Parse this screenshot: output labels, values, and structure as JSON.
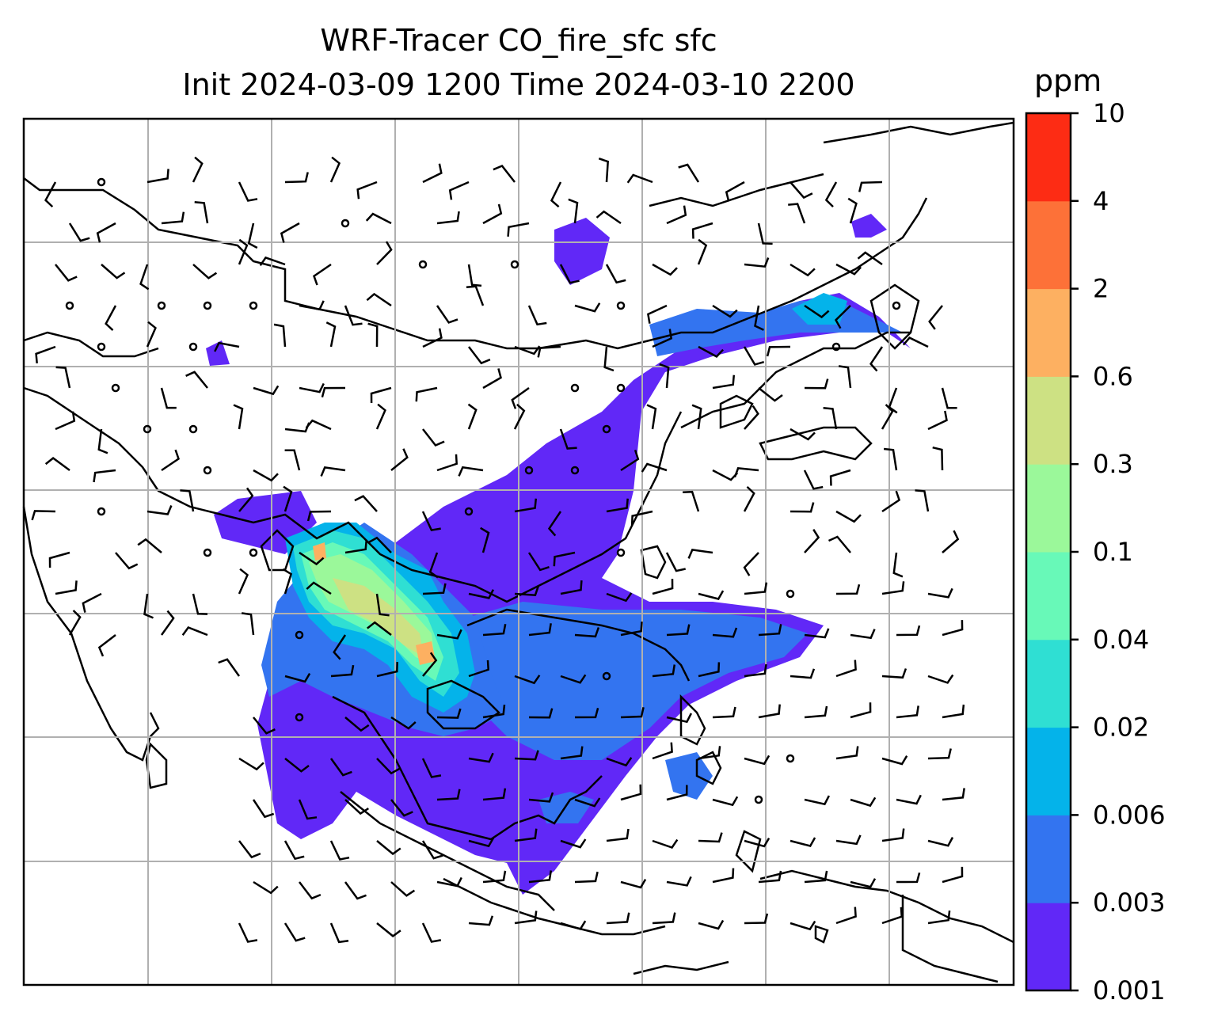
{
  "title_line1": "WRF-Tracer CO_fire_sfc sfc",
  "title_line2": "Init 2024-03-09 1200 Time 2024-03-10 2200",
  "colorbar": {
    "unit": "ppm",
    "levels": [
      "0.001",
      "0.003",
      "0.006",
      "0.02",
      "0.04",
      "0.1",
      "0.3",
      "0.6",
      "2",
      "4",
      "10"
    ],
    "colors": [
      "#6128f7",
      "#3374f0",
      "#04b3ea",
      "#2fdfd3",
      "#68f9b8",
      "#9bf89a",
      "#cde183",
      "#fdb061",
      "#fd7138",
      "#fd2c14"
    ]
  },
  "map": {
    "field": "CO_fire_sfc",
    "overlay": "wind barbs",
    "gridlines": true
  }
}
